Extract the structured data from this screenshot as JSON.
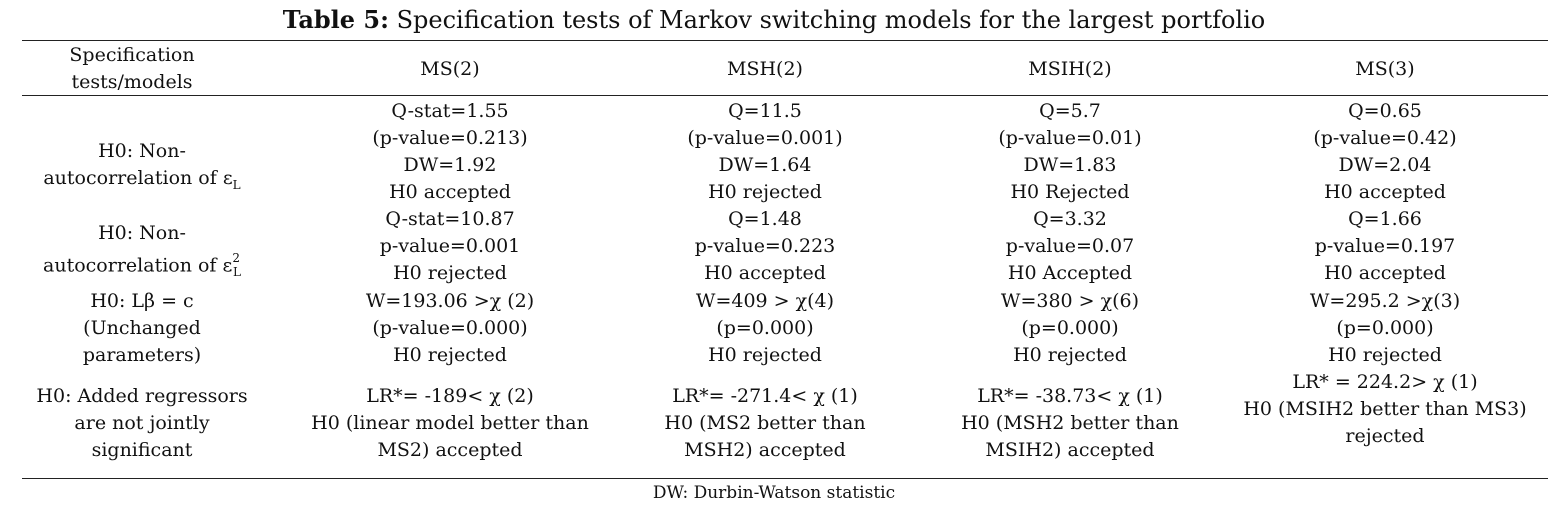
{
  "caption": {
    "label": "Table 5:",
    "text": " Specification tests of Markov switching models for the largest portfolio"
  },
  "header": {
    "first_line1": "Specification",
    "first_line2": "tests/models",
    "models": [
      "MS(2)",
      "MSH(2)",
      "MSIH(2)",
      "MS(3)"
    ]
  },
  "rows": [
    {
      "label_lines": [
        "H0: Non-",
        "autocorrelation of ε"
      ],
      "label_sub": "L",
      "label_sup": "",
      "cells": [
        [
          "Q-stat=1.55",
          "(p-value=0.213)",
          "DW=1.92",
          "H0 accepted"
        ],
        [
          "Q=11.5",
          "(p-value=0.001)",
          "DW=1.64",
          "H0 rejected"
        ],
        [
          "Q=5.7",
          "(p-value=0.01)",
          "DW=1.83",
          "H0 Rejected"
        ],
        [
          "Q=0.65",
          "(p-value=0.42)",
          "DW=2.04",
          "H0 accepted"
        ]
      ]
    },
    {
      "label_lines": [
        "H0: Non-",
        "autocorrelation of ε"
      ],
      "label_sub": "L",
      "label_sup": "2",
      "cells": [
        [
          "Q-stat=10.87",
          "p-value=0.001",
          "H0 rejected"
        ],
        [
          "Q=1.48",
          "p-value=0.223",
          "H0 accepted"
        ],
        [
          "Q=3.32",
          "p-value=0.07",
          "H0 Accepted"
        ],
        [
          "Q=1.66",
          "p-value=0.197",
          "H0 accepted"
        ]
      ]
    },
    {
      "label_lines": [
        "H0: Lβ = c",
        "(Unchanged",
        "parameters)"
      ],
      "cells": [
        [
          "W=193.06 >χ (2)",
          "(p-value=0.000)",
          "H0 rejected"
        ],
        [
          "W=409 > χ(4)",
          "(p=0.000)",
          "H0 rejected"
        ],
        [
          "W=380 > χ(6)",
          "(p=0.000)",
          "H0 rejected"
        ],
        [
          "W=295.2 >χ(3)",
          "(p=0.000)",
          "H0 rejected"
        ]
      ]
    },
    {
      "label_lines": [
        "H0: Added regressors",
        "are not jointly",
        "significant"
      ],
      "cells": [
        [
          "LR*= -189< χ (2)",
          "H0 (linear model better than",
          "MS2) accepted"
        ],
        [
          "LR*= -271.4< χ (1)",
          "H0 (MS2 better than",
          "MSH2) accepted"
        ],
        [
          "LR*= -38.73< χ (1)",
          "H0 (MSH2 better than",
          "MSIH2) accepted"
        ],
        [
          "LR* = 224.2> χ (1)",
          "H0 (MSIH2 better than MS3)",
          "rejected"
        ]
      ]
    }
  ],
  "footnote": "DW: Durbin-Watson statistic"
}
